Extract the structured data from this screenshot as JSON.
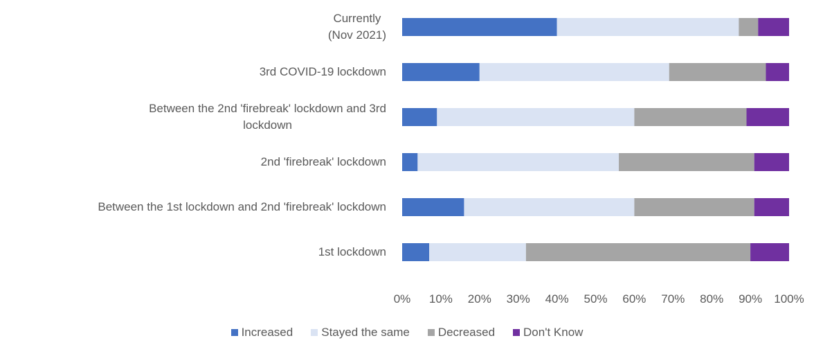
{
  "chart_data": {
    "type": "stacked_barh",
    "categories": [
      "Currently\n(Nov 2021)",
      "3rd COVID-19 lockdown",
      "Between the 2nd 'firebreak' lockdown and 3rd\nlockdown",
      "2nd 'firebreak' lockdown",
      "Between the 1st lockdown and 2nd 'firebreak' lockdown",
      "1st lockdown"
    ],
    "series": [
      {
        "name": "Increased",
        "color": "#4472c4",
        "values": [
          40,
          20,
          9,
          4,
          16,
          7
        ]
      },
      {
        "name": "Stayed the same",
        "color": "#dae3f3",
        "values": [
          47,
          49,
          51,
          52,
          44,
          25
        ]
      },
      {
        "name": "Decreased",
        "color": "#a5a5a5",
        "values": [
          5,
          25,
          29,
          35,
          31,
          58
        ]
      },
      {
        "name": "Don't Know",
        "color": "#7030a0",
        "values": [
          8,
          6,
          11,
          9,
          9,
          10
        ]
      }
    ],
    "xlim": [
      0,
      100
    ],
    "xticks": [
      {
        "value": 0,
        "label": "0%"
      },
      {
        "value": 10,
        "label": "10%"
      },
      {
        "value": 20,
        "label": "20%"
      },
      {
        "value": 30,
        "label": "30%"
      },
      {
        "value": 40,
        "label": "40%"
      },
      {
        "value": 50,
        "label": "50%"
      },
      {
        "value": 60,
        "label": "60%"
      },
      {
        "value": 70,
        "label": "70%"
      },
      {
        "value": 80,
        "label": "80%"
      },
      {
        "value": 90,
        "label": "90%"
      },
      {
        "value": 100,
        "label": "100%"
      }
    ],
    "legend": "bottom"
  }
}
